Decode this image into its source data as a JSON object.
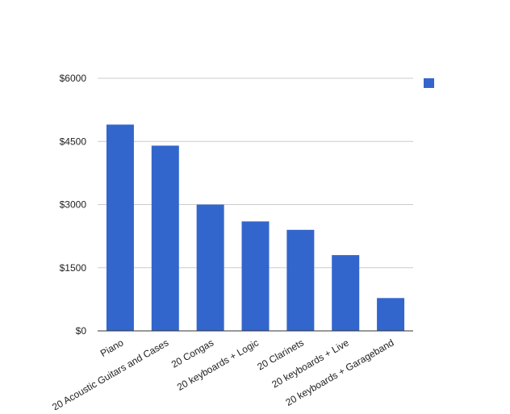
{
  "chart_data": {
    "type": "bar",
    "categories": [
      "Piano",
      "20 Acoustic Guitars and Cases",
      "20 Congas",
      "20 keyboards + Logic",
      "20 Clarinets",
      "20 keyboards + Live",
      "20 keyboards + Garageband"
    ],
    "series": [
      {
        "values": [
          4900,
          4400,
          3000,
          2600,
          2400,
          1800,
          780
        ]
      }
    ],
    "y_ticks": [
      "$0",
      "$1500",
      "$3000",
      "$4500",
      "$6000"
    ],
    "ylim": [
      0,
      6000
    ],
    "grid": true,
    "legend_position": "right",
    "colors": {
      "bar": "#3366cc",
      "grid": "#cccccc",
      "axis": "#333333"
    }
  }
}
